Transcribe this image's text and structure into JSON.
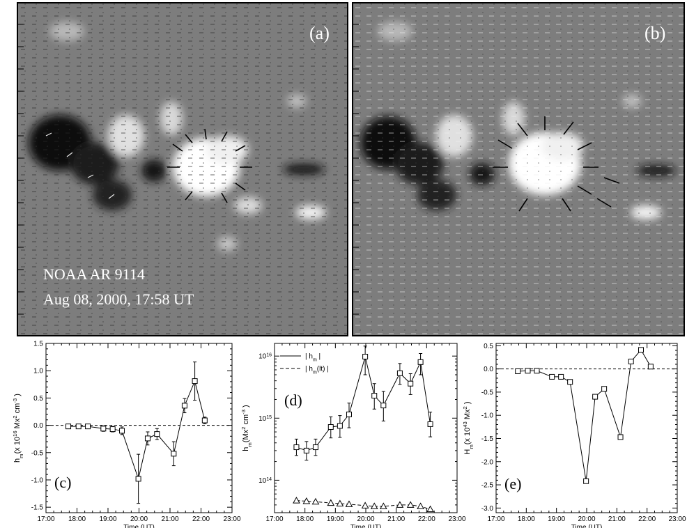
{
  "magnetogram": {
    "panel_a": {
      "label": "(a)",
      "annotation_line1": "NOAA AR 9114",
      "annotation_line2": "Aug 08, 2000, 17:58 UT"
    },
    "panel_b": {
      "label": "(b)"
    }
  },
  "chart_data": [
    {
      "type": "line",
      "panel_label": "(c)",
      "xlabel": "Time (UT)",
      "ylabel": "h_m(x 10^16 Mx^2 cm^-3 )",
      "xlim": [
        17,
        23
      ],
      "ylim": [
        -1.6,
        1.5
      ],
      "x_ticks": [
        17,
        18,
        19,
        20,
        21,
        22,
        23
      ],
      "x_tick_labels": [
        "17:00",
        "18:00",
        "19:00",
        "20:00",
        "21:00",
        "22:00",
        "23:00"
      ],
      "y_ticks": [
        -1.5,
        -1.0,
        -0.5,
        0.0,
        0.5,
        1.0,
        1.5
      ],
      "y_tick_labels": [
        "-1.5",
        "-1.0",
        "-0.5",
        "0.0",
        "0.5",
        "1.0",
        "1.5"
      ],
      "reference_line": 0,
      "series": [
        {
          "marker": "square",
          "x": [
            17.72,
            18.05,
            18.35,
            18.85,
            19.15,
            19.45,
            19.98,
            20.28,
            20.58,
            21.12,
            21.47,
            21.8,
            22.12
          ],
          "y": [
            -0.02,
            -0.02,
            -0.02,
            -0.06,
            -0.07,
            -0.1,
            -0.98,
            -0.24,
            -0.16,
            -0.52,
            0.36,
            0.81,
            0.09
          ],
          "error": [
            0.04,
            0.03,
            0.03,
            0.05,
            0.05,
            0.07,
            0.45,
            0.12,
            0.1,
            0.22,
            0.13,
            0.35,
            0.06
          ]
        }
      ]
    },
    {
      "type": "line",
      "panel_label": "(d)",
      "xlabel": "Time (UT)",
      "ylabel": "h_m(Mx^2 cm^-3 )",
      "yscale": "log",
      "xlim": [
        17,
        23
      ],
      "ylim": [
        30000000000000.0,
        1.6e+16
      ],
      "x_ticks": [
        17,
        18,
        19,
        20,
        21,
        22,
        23
      ],
      "x_tick_labels": [
        "17:00",
        "18:00",
        "19:00",
        "20:00",
        "21:00",
        "22:00",
        "23:00"
      ],
      "y_ticks": [
        100000000000000.0,
        1000000000000000.0,
        1e+16
      ],
      "y_tick_labels": [
        "10^14",
        "10^15",
        "10^16"
      ],
      "legend": {
        "entries": [
          "| h_m |",
          "| h_m(lt) |"
        ]
      },
      "series": [
        {
          "marker": "square",
          "line": "solid",
          "x": [
            17.72,
            18.05,
            18.35,
            18.85,
            19.15,
            19.45,
            19.98,
            20.28,
            20.58,
            21.12,
            21.47,
            21.8,
            22.12
          ],
          "y": [
            340000000000000.0,
            300000000000000.0,
            340000000000000.0,
            720000000000000.0,
            750000000000000.0,
            1150000000000000.0,
            9800000000000000.0,
            2300000000000000.0,
            1600000000000000.0,
            5300000000000000.0,
            3600000000000000.0,
            8000000000000000.0,
            800000000000000.0
          ],
          "error_low": [
            250000000000000.0,
            210000000000000.0,
            250000000000000.0,
            480000000000000.0,
            490000000000000.0,
            700000000000000.0,
            5000000000000000.0,
            1400000000000000.0,
            900000000000000.0,
            3500000000000000.0,
            2400000000000000.0,
            5000000000000000.0,
            500000000000000.0
          ],
          "error_high": [
            460000000000000.0,
            420000000000000.0,
            460000000000000.0,
            1050000000000000.0,
            1100000000000000.0,
            1750000000000000.0,
            1.45e+16,
            3600000000000000.0,
            2700000000000000.0,
            7600000000000000.0,
            5200000000000000.0,
            1.1e+16,
            1250000000000000.0
          ]
        },
        {
          "marker": "triangle",
          "line": "dashed",
          "x": [
            17.72,
            18.05,
            18.35,
            18.85,
            19.15,
            19.45,
            19.98,
            20.28,
            20.58,
            21.12,
            21.47,
            21.8,
            22.12
          ],
          "y": [
            47000000000000.0,
            46000000000000.0,
            45000000000000.0,
            43000000000000.0,
            42000000000000.0,
            41000000000000.0,
            39000000000000.0,
            38000000000000.0,
            38000000000000.0,
            40000000000000.0,
            40000000000000.0,
            38000000000000.0,
            34000000000000.0
          ]
        }
      ]
    },
    {
      "type": "line",
      "panel_label": "(e)",
      "xlabel": "Time (UT)",
      "ylabel": "H_m(x 10^43 Mx^2 )",
      "xlim": [
        17,
        23
      ],
      "ylim": [
        -3.1,
        0.55
      ],
      "x_ticks": [
        17,
        18,
        19,
        20,
        21,
        22,
        23
      ],
      "x_tick_labels": [
        "17:00",
        "18:00",
        "19:00",
        "20:00",
        "21:00",
        "22:00",
        "23:00"
      ],
      "y_ticks": [
        -3.0,
        -2.5,
        -2.0,
        -1.5,
        -1.0,
        -0.5,
        0.0,
        0.5
      ],
      "y_tick_labels": [
        "-3.0",
        "-2.5",
        "-2.0",
        "-1.5",
        "-1.0",
        "-0.5",
        "0.0",
        "0.5"
      ],
      "reference_line": 0,
      "series": [
        {
          "marker": "square",
          "x": [
            17.72,
            18.05,
            18.35,
            18.85,
            19.15,
            19.45,
            19.98,
            20.28,
            20.58,
            21.12,
            21.47,
            21.8,
            22.12
          ],
          "y": [
            -0.05,
            -0.04,
            -0.04,
            -0.17,
            -0.17,
            -0.28,
            -2.42,
            -0.6,
            -0.43,
            -1.47,
            0.16,
            0.41,
            0.05
          ]
        }
      ]
    }
  ]
}
